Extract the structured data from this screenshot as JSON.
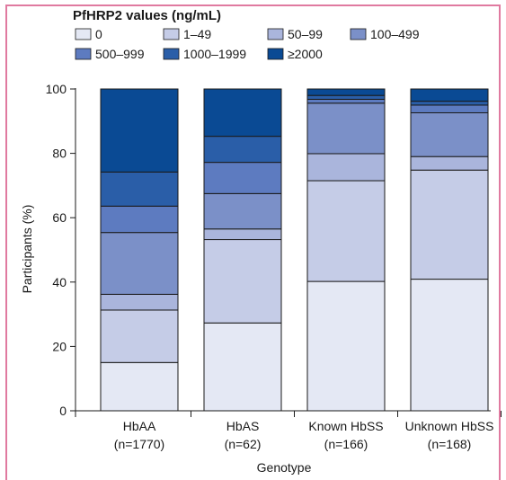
{
  "chart_data": {
    "type": "bar",
    "stacked": true,
    "legend_title": "PfHRP2 values (ng/mL)",
    "legend_position": "top-left",
    "categories": [
      "HbAA",
      "HbAS",
      "Known HbSS",
      "Unknown HbSS"
    ],
    "category_sublabels": [
      "(n=1770)",
      "(n=62)",
      "(n=166)",
      "(n=168)"
    ],
    "xlabel": "Genotype",
    "ylabel": "Participants (%)",
    "ylim": [
      0,
      100
    ],
    "yticks": [
      "0",
      "20",
      "40",
      "60",
      "80",
      "100"
    ],
    "grid": false,
    "series": [
      {
        "name": "0",
        "color": "#e4e8f4",
        "values": [
          15,
          27.3,
          40.2,
          40.9
        ]
      },
      {
        "name": "1–49",
        "color": "#c5cce7",
        "values": [
          16.3,
          25.9,
          31.3,
          33.9
        ]
      },
      {
        "name": "50–99",
        "color": "#aab5dc",
        "values": [
          4.9,
          3.3,
          8.4,
          4.2
        ]
      },
      {
        "name": "100–499",
        "color": "#7b90c8",
        "values": [
          19.2,
          11,
          15.7,
          13.6
        ]
      },
      {
        "name": "500–999",
        "color": "#5d7bc0",
        "values": [
          8.2,
          9.7,
          1.2,
          2.4
        ]
      },
      {
        "name": "1000–1999",
        "color": "#2a5ea8",
        "values": [
          10.6,
          8.1,
          1.2,
          1.2
        ]
      },
      {
        "name": "≥2000",
        "color": "#0a4a94",
        "values": [
          25.8,
          14.7,
          2,
          3.8
        ]
      }
    ]
  }
}
